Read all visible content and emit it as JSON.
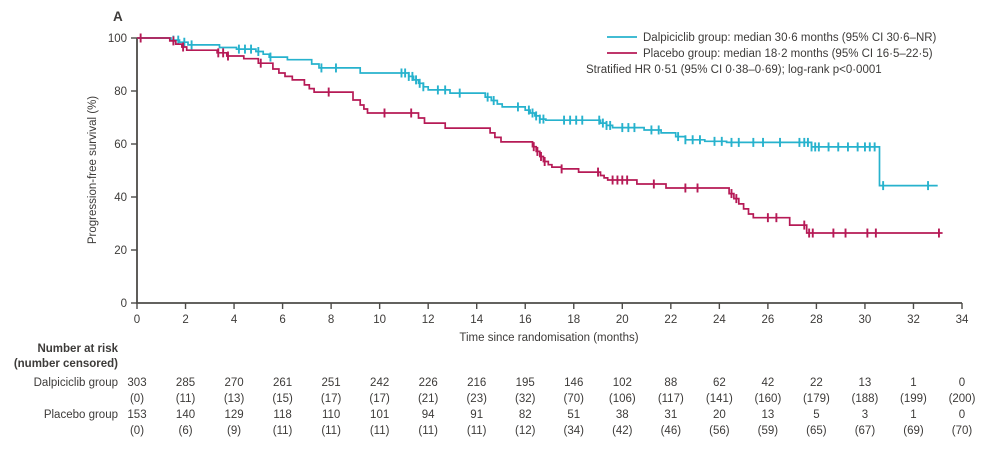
{
  "panel_label": "A",
  "colors": {
    "dalpiciclib": "#27b2cd",
    "placebo": "#b61a56",
    "axis": "#4d4b48",
    "text": "#3d3b39"
  },
  "legend": {
    "dalpiciclib": "Dalpiciclib group: median 30·6 months (95% CI 30·6–NR)",
    "placebo": "Placebo group: median 18·2 months (95% CI 16·5–22·5)",
    "hr_line": "Stratified HR 0·51 (95% CI 0·38–0·69); log-rank p<0·0001"
  },
  "chart_data": {
    "type": "line",
    "subtype": "kaplan-meier-step",
    "title": "",
    "xlabel": "Time since randomisation (months)",
    "ylabel": "Progression-free survival (%)",
    "xlim": [
      0,
      34
    ],
    "ylim": [
      0,
      100
    ],
    "xticks": [
      0,
      2,
      4,
      6,
      8,
      10,
      12,
      14,
      16,
      18,
      20,
      22,
      24,
      26,
      28,
      30,
      32,
      34
    ],
    "yticks": [
      0,
      20,
      40,
      60,
      80,
      100
    ],
    "grid": false,
    "legend_position": "top-right",
    "series": [
      {
        "name": "Dalpiciclib group",
        "color": "#27b2cd",
        "median_months": "30·6",
        "ci_95": "30·6–NR",
        "steps": [
          [
            0,
            100
          ],
          [
            1.4,
            99.2
          ],
          [
            1.75,
            98.4
          ],
          [
            2.1,
            97.4
          ],
          [
            3.4,
            96.4
          ],
          [
            4.1,
            95.8
          ],
          [
            4.9,
            94.9
          ],
          [
            5.2,
            93.9
          ],
          [
            5.45,
            92.8
          ],
          [
            6.2,
            91.8
          ],
          [
            7.2,
            90.2
          ],
          [
            7.5,
            88.7
          ],
          [
            9.2,
            86.8
          ],
          [
            11.2,
            85.5
          ],
          [
            11.4,
            84.2
          ],
          [
            11.6,
            82.9
          ],
          [
            11.8,
            81.6
          ],
          [
            12.0,
            80.4
          ],
          [
            12.9,
            79.2
          ],
          [
            14.35,
            77.7
          ],
          [
            14.6,
            76.4
          ],
          [
            14.85,
            75.1
          ],
          [
            15.05,
            74.0
          ],
          [
            16.0,
            72.8
          ],
          [
            16.2,
            71.7
          ],
          [
            16.4,
            70.6
          ],
          [
            16.6,
            69.4
          ],
          [
            16.85,
            69.0
          ],
          [
            19.1,
            67.9
          ],
          [
            19.35,
            67.0
          ],
          [
            19.6,
            66.2
          ],
          [
            20.9,
            65.3
          ],
          [
            21.6,
            64.2
          ],
          [
            22.2,
            62.8
          ],
          [
            22.6,
            61.6
          ],
          [
            23.4,
            61.0
          ],
          [
            24.3,
            60.6
          ],
          [
            27.8,
            58.9
          ],
          [
            30.6,
            44.3
          ],
          [
            33.0,
            44.3
          ]
        ],
        "censor_marks": [
          1.5,
          1.7,
          1.95,
          2.25,
          4.2,
          4.45,
          4.7,
          5.0,
          5.5,
          7.6,
          8.2,
          10.9,
          11.05,
          11.2,
          11.35,
          11.5,
          11.65,
          11.8,
          12.4,
          12.7,
          13.3,
          14.45,
          14.7,
          15.7,
          16.15,
          16.3,
          16.45,
          16.6,
          16.75,
          17.6,
          17.85,
          18.1,
          18.35,
          19.05,
          19.2,
          19.35,
          19.5,
          20.0,
          20.25,
          20.5,
          21.2,
          21.5,
          22.3,
          22.6,
          22.9,
          23.2,
          23.8,
          24.1,
          24.5,
          24.8,
          25.4,
          25.8,
          26.5,
          27.3,
          27.5,
          27.65,
          27.8,
          27.95,
          28.1,
          28.5,
          28.9,
          29.3,
          29.7,
          30.0,
          30.2,
          30.4,
          30.75,
          32.6
        ]
      },
      {
        "name": "Placebo group",
        "color": "#b61a56",
        "median_months": "18·2",
        "ci_95": "16·5–22·5",
        "steps": [
          [
            0,
            100
          ],
          [
            1.35,
            98.9
          ],
          [
            1.6,
            97.7
          ],
          [
            1.85,
            96.6
          ],
          [
            2.05,
            95.4
          ],
          [
            3.3,
            94.4
          ],
          [
            3.7,
            93.2
          ],
          [
            4.4,
            92.2
          ],
          [
            5.0,
            90.5
          ],
          [
            5.6,
            88.3
          ],
          [
            5.85,
            86.8
          ],
          [
            6.1,
            85.5
          ],
          [
            6.4,
            84.2
          ],
          [
            6.9,
            82.3
          ],
          [
            7.1,
            80.9
          ],
          [
            7.3,
            79.6
          ],
          [
            8.9,
            76.6
          ],
          [
            9.2,
            74.7
          ],
          [
            9.35,
            73.2
          ],
          [
            9.5,
            71.7
          ],
          [
            11.6,
            69.8
          ],
          [
            11.85,
            67.9
          ],
          [
            12.7,
            66.0
          ],
          [
            14.55,
            64.2
          ],
          [
            14.75,
            62.5
          ],
          [
            15.0,
            60.8
          ],
          [
            16.3,
            59.0
          ],
          [
            16.45,
            57.2
          ],
          [
            16.6,
            55.3
          ],
          [
            16.75,
            53.4
          ],
          [
            16.95,
            52.2
          ],
          [
            17.1,
            51.3
          ],
          [
            17.5,
            50.6
          ],
          [
            18.2,
            49.4
          ],
          [
            19.1,
            48.1
          ],
          [
            19.25,
            47.2
          ],
          [
            19.4,
            46.4
          ],
          [
            20.6,
            44.9
          ],
          [
            21.8,
            43.4
          ],
          [
            24.4,
            41.3
          ],
          [
            24.6,
            39.4
          ],
          [
            24.8,
            37.4
          ],
          [
            25.0,
            35.5
          ],
          [
            25.2,
            33.6
          ],
          [
            25.4,
            32.2
          ],
          [
            26.9,
            29.4
          ],
          [
            27.6,
            26.4
          ],
          [
            33.2,
            26.4
          ]
        ],
        "censor_marks": [
          0.15,
          1.5,
          1.9,
          3.35,
          3.55,
          3.75,
          5.1,
          7.9,
          10.2,
          11.3,
          16.35,
          16.5,
          16.65,
          16.8,
          17.5,
          19.0,
          19.6,
          19.8,
          20.0,
          20.2,
          21.3,
          22.6,
          23.1,
          24.5,
          24.7,
          26.0,
          26.35,
          27.5,
          27.7,
          27.85,
          28.7,
          29.2,
          30.1,
          30.45,
          33.05
        ]
      }
    ]
  },
  "risk_table": {
    "header_line1": "Number at risk",
    "header_line2": "(number censored)",
    "timepoints": [
      0,
      2,
      4,
      6,
      8,
      10,
      12,
      14,
      16,
      18,
      20,
      22,
      24,
      26,
      28,
      30,
      32,
      34
    ],
    "rows": [
      {
        "label": "Dalpiciclib group",
        "at_risk": [
          303,
          285,
          270,
          261,
          251,
          242,
          226,
          216,
          195,
          146,
          102,
          88,
          62,
          42,
          22,
          13,
          1,
          0
        ],
        "censored": [
          0,
          11,
          13,
          15,
          17,
          17,
          21,
          23,
          32,
          70,
          106,
          117,
          141,
          160,
          179,
          188,
          199,
          200
        ]
      },
      {
        "label": "Placebo group",
        "at_risk": [
          153,
          140,
          129,
          118,
          110,
          101,
          94,
          91,
          82,
          51,
          38,
          31,
          20,
          13,
          5,
          3,
          1,
          0
        ],
        "censored": [
          0,
          6,
          9,
          11,
          11,
          11,
          11,
          11,
          12,
          34,
          42,
          46,
          56,
          59,
          65,
          67,
          69,
          70
        ]
      }
    ]
  }
}
